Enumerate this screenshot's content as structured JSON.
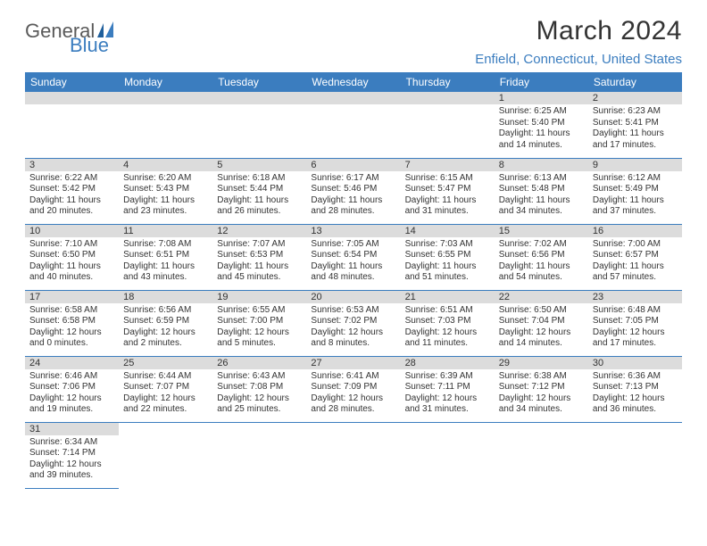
{
  "brand": {
    "part1": "General",
    "part2": "Blue"
  },
  "title": "March 2024",
  "location": "Enfield, Connecticut, United States",
  "colors": {
    "accent": "#3b7dbf",
    "header_bg": "#3b7dbf",
    "header_fg": "#ffffff",
    "daybar_bg": "#dcdcdc",
    "text": "#333333",
    "rule": "#3b7dbf"
  },
  "weekdays": [
    "Sunday",
    "Monday",
    "Tuesday",
    "Wednesday",
    "Thursday",
    "Friday",
    "Saturday"
  ],
  "layout": {
    "first_weekday_index": 5,
    "num_days": 31
  },
  "days": {
    "1": {
      "sunrise": "Sunrise: 6:25 AM",
      "sunset": "Sunset: 5:40 PM",
      "daylight1": "Daylight: 11 hours",
      "daylight2": "and 14 minutes."
    },
    "2": {
      "sunrise": "Sunrise: 6:23 AM",
      "sunset": "Sunset: 5:41 PM",
      "daylight1": "Daylight: 11 hours",
      "daylight2": "and 17 minutes."
    },
    "3": {
      "sunrise": "Sunrise: 6:22 AM",
      "sunset": "Sunset: 5:42 PM",
      "daylight1": "Daylight: 11 hours",
      "daylight2": "and 20 minutes."
    },
    "4": {
      "sunrise": "Sunrise: 6:20 AM",
      "sunset": "Sunset: 5:43 PM",
      "daylight1": "Daylight: 11 hours",
      "daylight2": "and 23 minutes."
    },
    "5": {
      "sunrise": "Sunrise: 6:18 AM",
      "sunset": "Sunset: 5:44 PM",
      "daylight1": "Daylight: 11 hours",
      "daylight2": "and 26 minutes."
    },
    "6": {
      "sunrise": "Sunrise: 6:17 AM",
      "sunset": "Sunset: 5:46 PM",
      "daylight1": "Daylight: 11 hours",
      "daylight2": "and 28 minutes."
    },
    "7": {
      "sunrise": "Sunrise: 6:15 AM",
      "sunset": "Sunset: 5:47 PM",
      "daylight1": "Daylight: 11 hours",
      "daylight2": "and 31 minutes."
    },
    "8": {
      "sunrise": "Sunrise: 6:13 AM",
      "sunset": "Sunset: 5:48 PM",
      "daylight1": "Daylight: 11 hours",
      "daylight2": "and 34 minutes."
    },
    "9": {
      "sunrise": "Sunrise: 6:12 AM",
      "sunset": "Sunset: 5:49 PM",
      "daylight1": "Daylight: 11 hours",
      "daylight2": "and 37 minutes."
    },
    "10": {
      "sunrise": "Sunrise: 7:10 AM",
      "sunset": "Sunset: 6:50 PM",
      "daylight1": "Daylight: 11 hours",
      "daylight2": "and 40 minutes."
    },
    "11": {
      "sunrise": "Sunrise: 7:08 AM",
      "sunset": "Sunset: 6:51 PM",
      "daylight1": "Daylight: 11 hours",
      "daylight2": "and 43 minutes."
    },
    "12": {
      "sunrise": "Sunrise: 7:07 AM",
      "sunset": "Sunset: 6:53 PM",
      "daylight1": "Daylight: 11 hours",
      "daylight2": "and 45 minutes."
    },
    "13": {
      "sunrise": "Sunrise: 7:05 AM",
      "sunset": "Sunset: 6:54 PM",
      "daylight1": "Daylight: 11 hours",
      "daylight2": "and 48 minutes."
    },
    "14": {
      "sunrise": "Sunrise: 7:03 AM",
      "sunset": "Sunset: 6:55 PM",
      "daylight1": "Daylight: 11 hours",
      "daylight2": "and 51 minutes."
    },
    "15": {
      "sunrise": "Sunrise: 7:02 AM",
      "sunset": "Sunset: 6:56 PM",
      "daylight1": "Daylight: 11 hours",
      "daylight2": "and 54 minutes."
    },
    "16": {
      "sunrise": "Sunrise: 7:00 AM",
      "sunset": "Sunset: 6:57 PM",
      "daylight1": "Daylight: 11 hours",
      "daylight2": "and 57 minutes."
    },
    "17": {
      "sunrise": "Sunrise: 6:58 AM",
      "sunset": "Sunset: 6:58 PM",
      "daylight1": "Daylight: 12 hours",
      "daylight2": "and 0 minutes."
    },
    "18": {
      "sunrise": "Sunrise: 6:56 AM",
      "sunset": "Sunset: 6:59 PM",
      "daylight1": "Daylight: 12 hours",
      "daylight2": "and 2 minutes."
    },
    "19": {
      "sunrise": "Sunrise: 6:55 AM",
      "sunset": "Sunset: 7:00 PM",
      "daylight1": "Daylight: 12 hours",
      "daylight2": "and 5 minutes."
    },
    "20": {
      "sunrise": "Sunrise: 6:53 AM",
      "sunset": "Sunset: 7:02 PM",
      "daylight1": "Daylight: 12 hours",
      "daylight2": "and 8 minutes."
    },
    "21": {
      "sunrise": "Sunrise: 6:51 AM",
      "sunset": "Sunset: 7:03 PM",
      "daylight1": "Daylight: 12 hours",
      "daylight2": "and 11 minutes."
    },
    "22": {
      "sunrise": "Sunrise: 6:50 AM",
      "sunset": "Sunset: 7:04 PM",
      "daylight1": "Daylight: 12 hours",
      "daylight2": "and 14 minutes."
    },
    "23": {
      "sunrise": "Sunrise: 6:48 AM",
      "sunset": "Sunset: 7:05 PM",
      "daylight1": "Daylight: 12 hours",
      "daylight2": "and 17 minutes."
    },
    "24": {
      "sunrise": "Sunrise: 6:46 AM",
      "sunset": "Sunset: 7:06 PM",
      "daylight1": "Daylight: 12 hours",
      "daylight2": "and 19 minutes."
    },
    "25": {
      "sunrise": "Sunrise: 6:44 AM",
      "sunset": "Sunset: 7:07 PM",
      "daylight1": "Daylight: 12 hours",
      "daylight2": "and 22 minutes."
    },
    "26": {
      "sunrise": "Sunrise: 6:43 AM",
      "sunset": "Sunset: 7:08 PM",
      "daylight1": "Daylight: 12 hours",
      "daylight2": "and 25 minutes."
    },
    "27": {
      "sunrise": "Sunrise: 6:41 AM",
      "sunset": "Sunset: 7:09 PM",
      "daylight1": "Daylight: 12 hours",
      "daylight2": "and 28 minutes."
    },
    "28": {
      "sunrise": "Sunrise: 6:39 AM",
      "sunset": "Sunset: 7:11 PM",
      "daylight1": "Daylight: 12 hours",
      "daylight2": "and 31 minutes."
    },
    "29": {
      "sunrise": "Sunrise: 6:38 AM",
      "sunset": "Sunset: 7:12 PM",
      "daylight1": "Daylight: 12 hours",
      "daylight2": "and 34 minutes."
    },
    "30": {
      "sunrise": "Sunrise: 6:36 AM",
      "sunset": "Sunset: 7:13 PM",
      "daylight1": "Daylight: 12 hours",
      "daylight2": "and 36 minutes."
    },
    "31": {
      "sunrise": "Sunrise: 6:34 AM",
      "sunset": "Sunset: 7:14 PM",
      "daylight1": "Daylight: 12 hours",
      "daylight2": "and 39 minutes."
    }
  }
}
